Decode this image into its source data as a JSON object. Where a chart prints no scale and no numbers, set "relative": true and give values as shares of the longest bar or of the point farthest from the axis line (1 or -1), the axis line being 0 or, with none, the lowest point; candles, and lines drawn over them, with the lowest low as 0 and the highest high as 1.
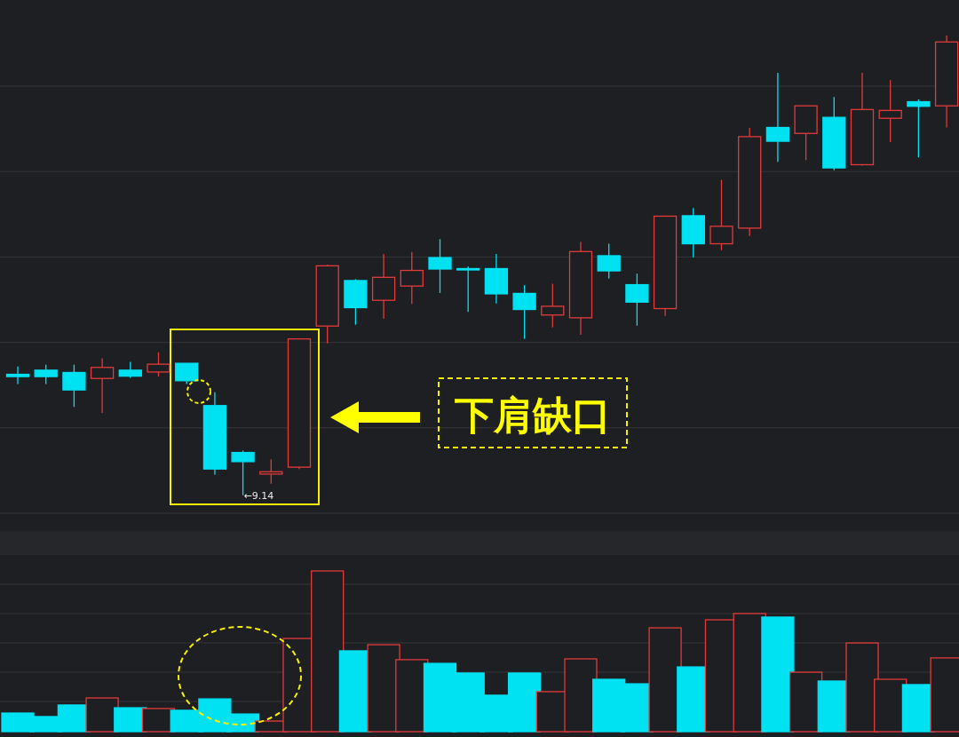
{
  "chart_data": [
    {
      "type": "candlestick",
      "relative": true,
      "grid": true,
      "categories": [
        null,
        null,
        null,
        null,
        null,
        null,
        null,
        null,
        null,
        null,
        null,
        null,
        null,
        null,
        null,
        null,
        null,
        null,
        null,
        null,
        null,
        null,
        null,
        null,
        null,
        null,
        null,
        null,
        null,
        null,
        null,
        null,
        null,
        null
      ],
      "ohlc": [
        [
          0.263,
          0.28,
          0.242,
          0.258
        ],
        [
          0.272,
          0.284,
          0.242,
          0.258
        ],
        [
          0.267,
          0.284,
          0.192,
          0.229
        ],
        [
          0.254,
          0.298,
          0.179,
          0.278
        ],
        [
          0.272,
          0.29,
          0.255,
          0.259
        ],
        [
          0.268,
          0.311,
          0.258,
          0.285
        ],
        [
          0.287,
          0.287,
          0.242,
          0.249
        ],
        [
          0.195,
          0.224,
          0.045,
          0.057
        ],
        [
          0.093,
          0.097,
          0.0,
          0.073
        ],
        [
          0.046,
          0.078,
          0.025,
          0.051
        ],
        [
          0.061,
          0.34,
          0.057,
          0.34
        ],
        [
          0.368,
          0.501,
          0.33,
          0.499
        ],
        [
          0.467,
          0.47,
          0.371,
          0.408
        ],
        [
          0.424,
          0.525,
          0.384,
          0.474
        ],
        [
          0.455,
          0.529,
          0.416,
          0.489
        ],
        [
          0.517,
          0.557,
          0.44,
          0.492
        ],
        [
          0.493,
          0.498,
          0.399,
          0.49
        ],
        [
          0.493,
          0.525,
          0.417,
          0.438
        ],
        [
          0.439,
          0.457,
          0.34,
          0.404
        ],
        [
          0.392,
          0.46,
          0.365,
          0.411
        ],
        [
          0.386,
          0.551,
          0.349,
          0.53
        ],
        [
          0.521,
          0.547,
          0.471,
          0.488
        ],
        [
          0.458,
          0.482,
          0.369,
          0.42
        ],
        [
          0.406,
          0.607,
          0.39,
          0.607
        ],
        [
          0.608,
          0.625,
          0.517,
          0.547
        ],
        [
          0.547,
          0.686,
          0.533,
          0.585
        ],
        [
          0.581,
          0.799,
          0.564,
          0.78
        ],
        [
          0.8,
          0.919,
          0.725,
          0.77
        ],
        [
          0.787,
          0.847,
          0.729,
          0.847
        ],
        [
          0.822,
          0.866,
          0.707,
          0.712
        ],
        [
          0.719,
          0.919,
          0.717,
          0.839
        ],
        [
          0.82,
          0.903,
          0.768,
          0.837
        ],
        [
          0.856,
          0.861,
          0.735,
          0.846
        ],
        [
          0.847,
          1.0,
          0.8,
          0.986
        ]
      ],
      "colors": [
        "#00e1f2",
        "#00e1f2",
        "#00e1f2",
        "#e23b3b",
        "#00e1f2",
        "#e23b3b",
        "#00e1f2",
        "#00e1f2",
        "#00e1f2",
        "#e23b3b",
        "#e23b3b",
        "#e23b3b",
        "#00e1f2",
        "#e23b3b",
        "#e23b3b",
        "#00e1f2",
        "#00e1f2",
        "#00e1f2",
        "#00e1f2",
        "#e23b3b",
        "#e23b3b",
        "#00e1f2",
        "#00e1f2",
        "#e23b3b",
        "#00e1f2",
        "#e23b3b",
        "#e23b3b",
        "#00e1f2",
        "#e23b3b",
        "#00e1f2",
        "#e23b3b",
        "#e23b3b",
        "#00e1f2",
        "#e23b3b"
      ],
      "annotations": [
        "←9.14",
        "下肩缺口"
      ]
    },
    {
      "type": "bar",
      "relative": true,
      "grid": true,
      "categories": [
        null,
        null,
        null,
        null,
        null,
        null,
        null,
        null,
        null,
        null,
        null,
        null,
        null,
        null,
        null,
        null,
        null,
        null,
        null,
        null,
        null,
        null,
        null,
        null,
        null,
        null,
        null,
        null,
        null,
        null,
        null,
        null,
        null,
        null
      ],
      "values": [
        0.116,
        0.094,
        0.166,
        0.21,
        0.149,
        0.144,
        0.133,
        0.204,
        0.11,
        0.066,
        0.58,
        1.0,
        0.503,
        0.541,
        0.448,
        0.425,
        0.365,
        0.227,
        0.365,
        0.249,
        0.453,
        0.326,
        0.298,
        0.646,
        0.403,
        0.696,
        0.735,
        0.713,
        0.37,
        0.315,
        0.552,
        0.326,
        0.293,
        0.459
      ],
      "colors": [
        "#00e1f2",
        "#00e1f2",
        "#00e1f2",
        "#e23b3b",
        "#00e1f2",
        "#e23b3b",
        "#00e1f2",
        "#00e1f2",
        "#00e1f2",
        "#e23b3b",
        "#e23b3b",
        "#e23b3b",
        "#00e1f2",
        "#e23b3b",
        "#e23b3b",
        "#00e1f2",
        "#00e1f2",
        "#00e1f2",
        "#00e1f2",
        "#e23b3b",
        "#e23b3b",
        "#00e1f2",
        "#00e1f2",
        "#e23b3b",
        "#00e1f2",
        "#e23b3b",
        "#e23b3b",
        "#00e1f2",
        "#e23b3b",
        "#00e1f2",
        "#e23b3b",
        "#e23b3b",
        "#00e1f2",
        "#e23b3b"
      ]
    }
  ]
}
